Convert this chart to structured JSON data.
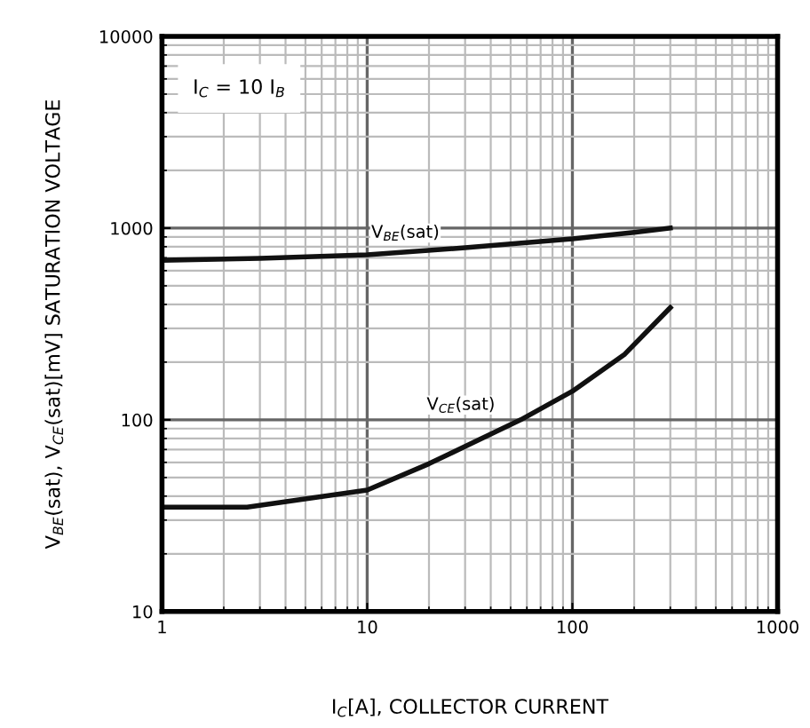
{
  "chart_data": {
    "type": "line",
    "xlabel": "I$_{C}$[A], COLLECTOR CURRENT",
    "ylabel": "V$_{BE}$(sat), V$_{CE}$(sat)[mV] SATURATION VOLTAGE",
    "annotations": [
      "I$_{C}$ = 10 I$_{B}$"
    ],
    "log": "xy",
    "xlim": [
      1,
      1000
    ],
    "ylim": [
      10,
      10000
    ],
    "xticks": [
      1,
      10,
      100,
      1000
    ],
    "yticks": [
      10,
      100,
      1000,
      10000
    ],
    "grid": true,
    "legend": false,
    "series": [
      {
        "name": "V$_{BE}$(sat)",
        "color": "#111111",
        "x": [
          1,
          3,
          10,
          30,
          100,
          200,
          300
        ],
        "values": [
          680,
          695,
          725,
          790,
          880,
          950,
          1000
        ]
      },
      {
        "name": "V$_{CE}$(sat)",
        "color": "#111111",
        "x": [
          1,
          2.6,
          10,
          20,
          56,
          100,
          180,
          300
        ],
        "values": [
          35,
          35,
          43,
          59,
          100,
          141,
          220,
          385
        ]
      }
    ]
  }
}
